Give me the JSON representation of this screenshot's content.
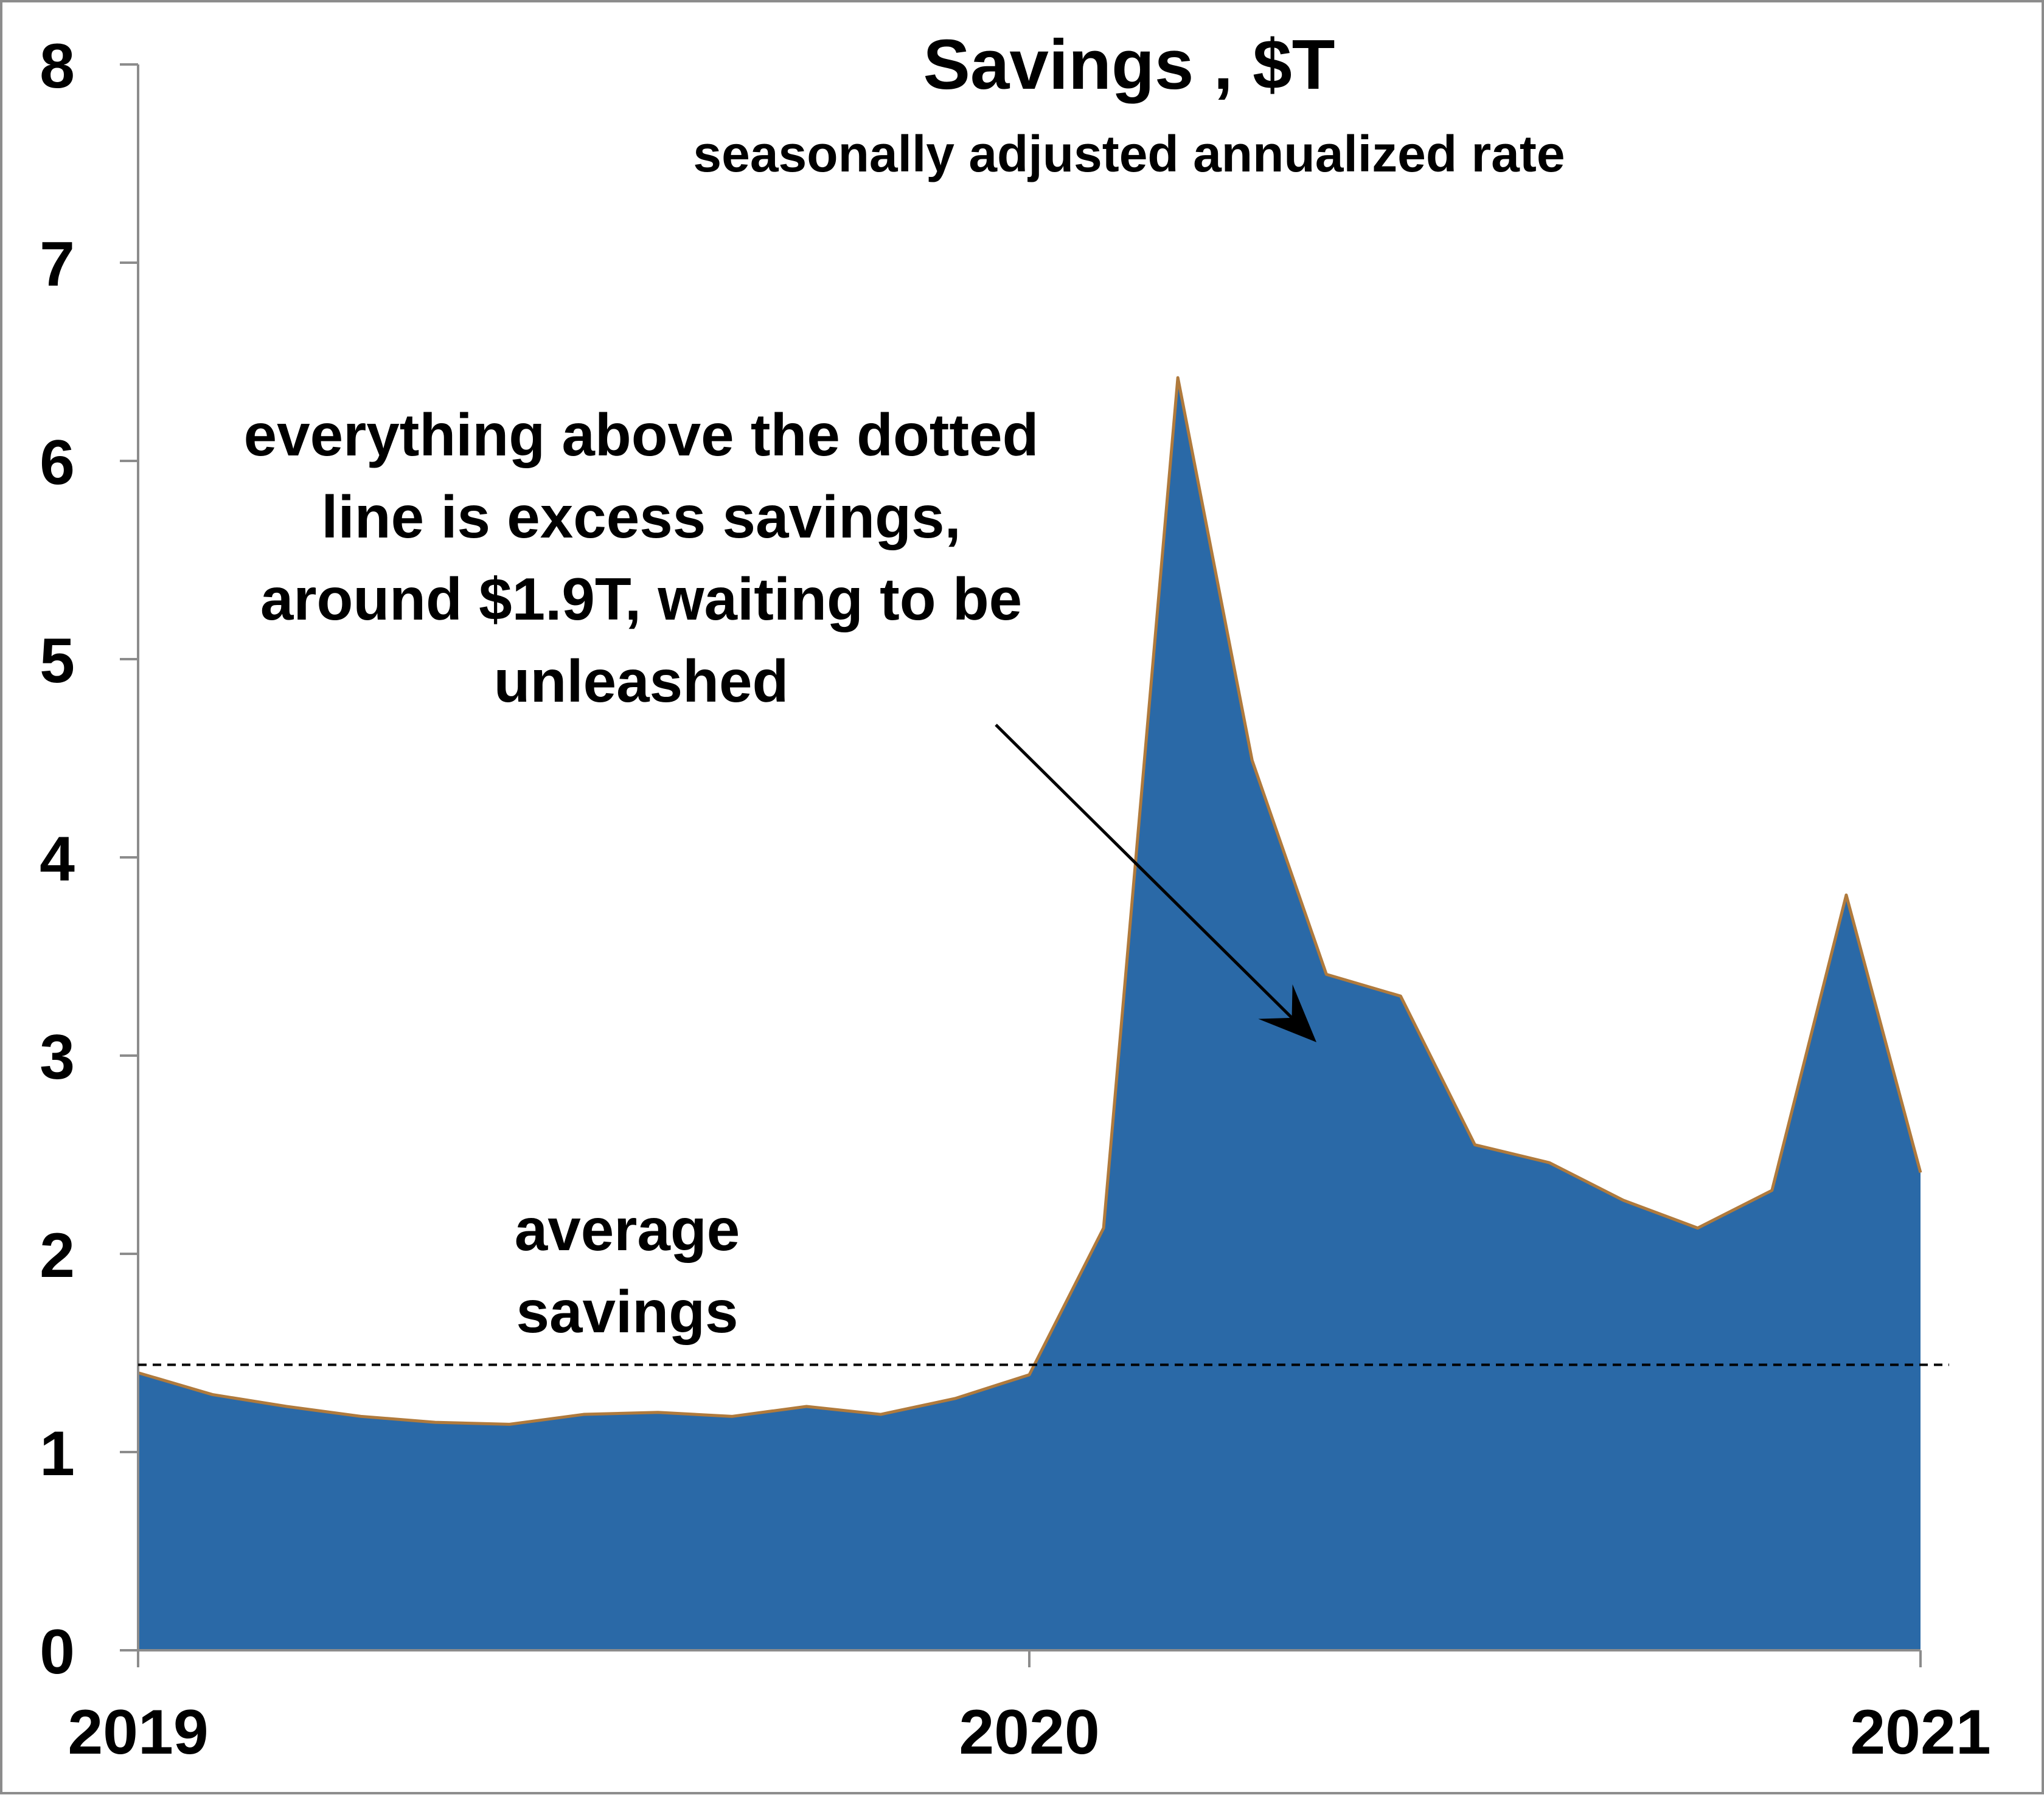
{
  "colors": {
    "area_fill": "#2a69a7",
    "area_stroke": "#b07a3c",
    "axis": "#8c8c8c",
    "text": "#000000",
    "average_line": "#000000"
  },
  "chart_data": {
    "type": "area",
    "title": "Savings , $T",
    "subtitle": "seasonally adjusted annualized rate",
    "xlabel": "",
    "ylabel": "",
    "x_tick_labels": [
      "2019",
      "2020",
      "2021"
    ],
    "y_tick_labels": [
      "0",
      "1",
      "2",
      "3",
      "4",
      "5",
      "6",
      "7",
      "8"
    ],
    "ylim": [
      0,
      8
    ],
    "grid": false,
    "legend": "none",
    "x": [
      "2019-01",
      "2019-02",
      "2019-03",
      "2019-04",
      "2019-05",
      "2019-06",
      "2019-07",
      "2019-08",
      "2019-09",
      "2019-10",
      "2019-11",
      "2019-12",
      "2020-01",
      "2020-02",
      "2020-03",
      "2020-04",
      "2020-05",
      "2020-06",
      "2020-07",
      "2020-08",
      "2020-09",
      "2020-10",
      "2020-11",
      "2020-12",
      "2021-01"
    ],
    "series": [
      {
        "values": [
          1.4,
          1.29,
          1.23,
          1.18,
          1.15,
          1.14,
          1.19,
          1.2,
          1.18,
          1.23,
          1.19,
          1.27,
          1.39,
          2.13,
          6.42,
          4.49,
          3.41,
          3.3,
          2.55,
          2.46,
          2.27,
          2.13,
          2.32,
          3.81,
          2.41
        ]
      }
    ],
    "average_line": {
      "value": 1.44,
      "style": "dashed",
      "label_lines": [
        "average",
        "savings"
      ]
    },
    "annotation": {
      "text_lines": [
        "everything above the dotted",
        "line is excess savings,",
        "around $1.9T, waiting to be",
        "unleashed"
      ],
      "arrow_to": {
        "x": "2020-06",
        "y": 3.1
      }
    }
  }
}
